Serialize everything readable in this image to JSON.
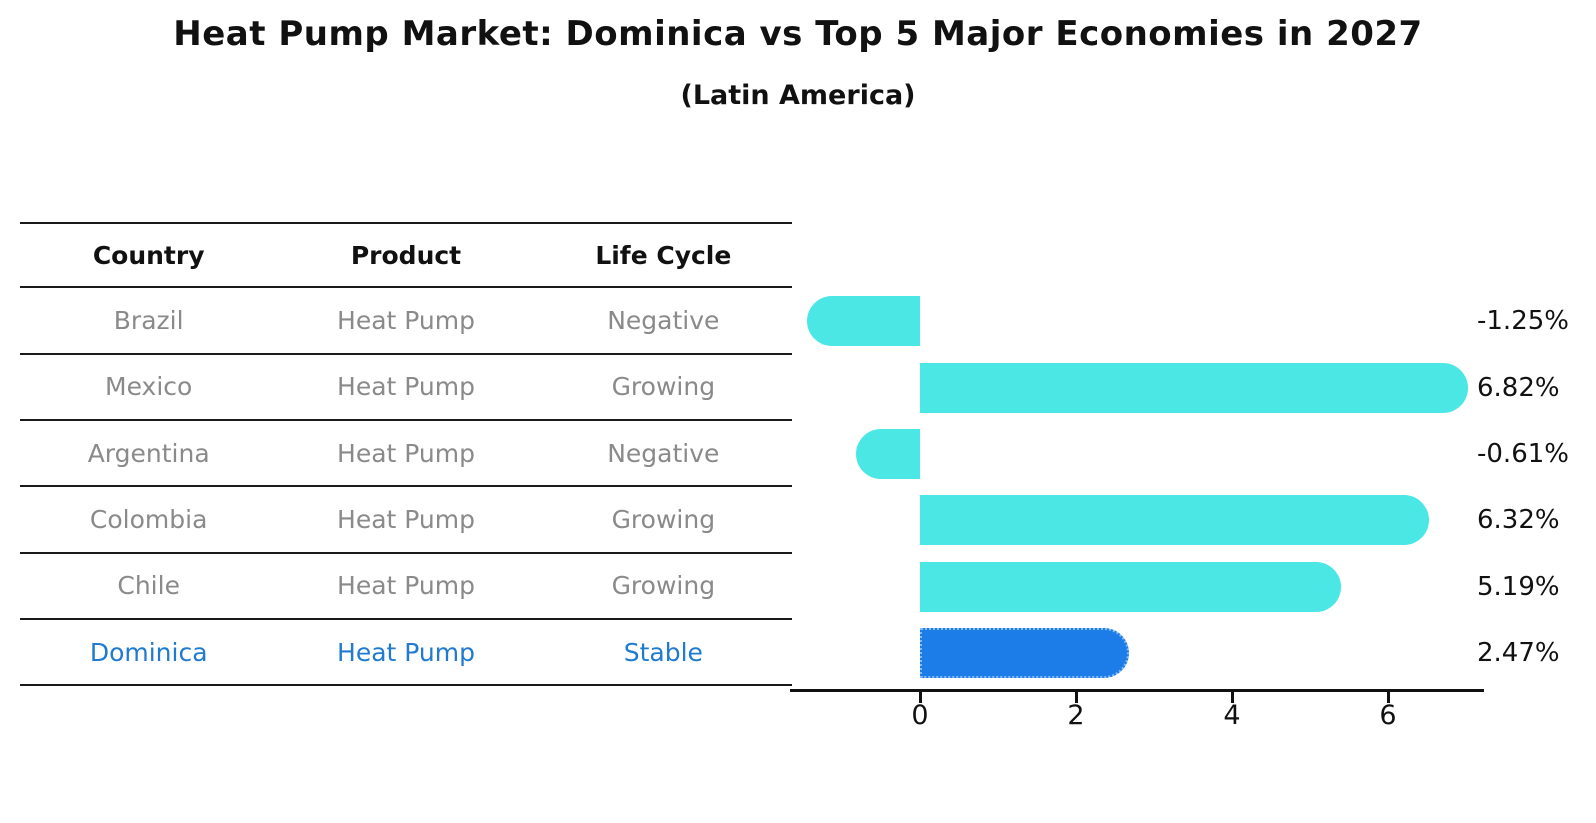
{
  "title": "Heat Pump Market: Dominica vs Top 5 Major Economies in 2027",
  "subtitle": "(Latin America)",
  "colors": {
    "bar_fill": "#4AE7E4",
    "highlight_fill": "#1C7CE8",
    "highlight_border": "#85BCF5",
    "row_text": "#8a8a8a",
    "highlight_text": "#1F7AD0"
  },
  "table": {
    "headers": [
      "Country",
      "Product",
      "Life Cycle"
    ],
    "rows": [
      {
        "country": "Brazil",
        "product": "Heat Pump",
        "life_cycle": "Negative",
        "highlight": false
      },
      {
        "country": "Mexico",
        "product": "Heat Pump",
        "life_cycle": "Growing",
        "highlight": false
      },
      {
        "country": "Argentina",
        "product": "Heat Pump",
        "life_cycle": "Negative",
        "highlight": false
      },
      {
        "country": "Colombia",
        "product": "Heat Pump",
        "life_cycle": "Growing",
        "highlight": false
      },
      {
        "country": "Chile",
        "product": "Heat Pump",
        "life_cycle": "Growing",
        "highlight": false
      },
      {
        "country": "Dominica",
        "product": "Heat Pump",
        "life_cycle": "Stable",
        "highlight": true
      }
    ]
  },
  "chart_data": {
    "type": "bar",
    "orientation": "horizontal",
    "title": "Heat Pump Market: Dominica vs Top 5 Major Economies in 2027 (Latin America)",
    "categories": [
      "Brazil",
      "Mexico",
      "Argentina",
      "Colombia",
      "Chile",
      "Dominica"
    ],
    "values": [
      -1.25,
      6.82,
      -0.61,
      6.32,
      5.19,
      2.47
    ],
    "value_labels": [
      "-1.25%",
      "6.82%",
      "-0.61%",
      "6.32%",
      "5.19%",
      "2.47%"
    ],
    "highlight_index": 5,
    "xticks": [
      0,
      2,
      4,
      6
    ],
    "xlim": [
      -1.67,
      7.23
    ],
    "grid": false,
    "legend": false,
    "ylabel": "",
    "xlabel": ""
  }
}
